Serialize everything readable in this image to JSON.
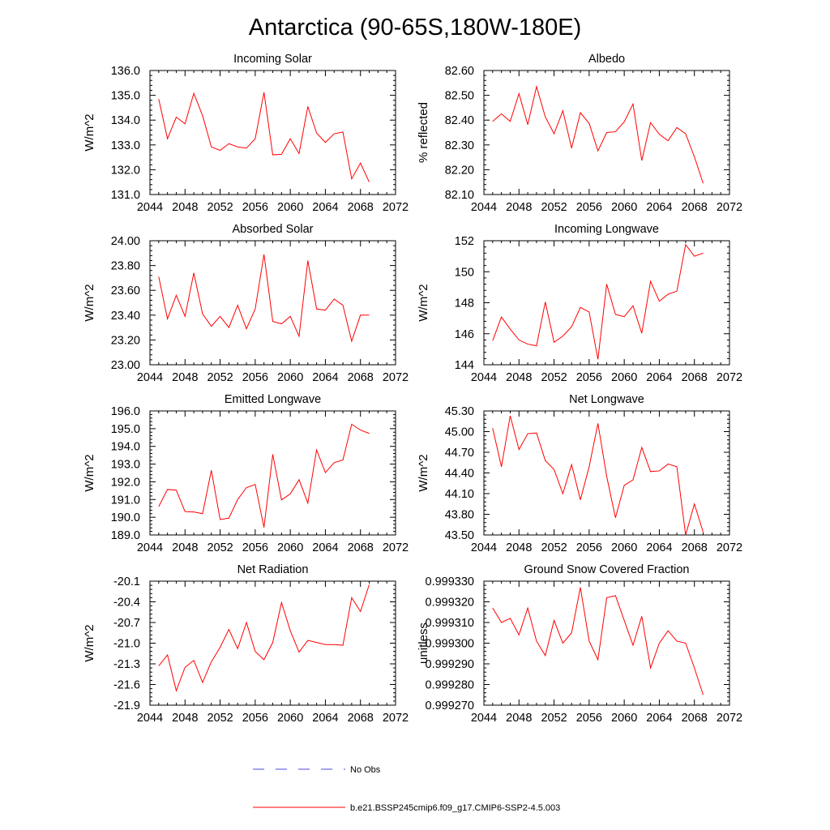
{
  "figure": {
    "title": "Antarctica (90-65S,180W-180E)"
  },
  "legend": [
    {
      "label": "No Obs",
      "color": "#4a4adf",
      "style": "dashed"
    },
    {
      "label": "b.e21.BSSP245cmip6.f09_g17.CMIP6-SSP2-4.5.003",
      "color": "#ff0000",
      "style": "solid"
    }
  ],
  "chart_data": [
    {
      "type": "line",
      "title": "Incoming Solar",
      "ylabel": "W/m^2",
      "xlim": [
        2044,
        2072
      ],
      "ylim": [
        131.0,
        136.0
      ],
      "xticks": [
        2044,
        2048,
        2052,
        2056,
        2060,
        2064,
        2068,
        2072
      ],
      "yticks": [
        "131.0",
        "132.0",
        "133.0",
        "134.0",
        "135.0",
        "136.0"
      ],
      "series": [
        {
          "name": "b.e21.BSSP245cmip6.f09_g17.CMIP6-SSP2-4.5.003",
          "x": [
            2045,
            2046,
            2047,
            2048,
            2049,
            2050,
            2051,
            2052,
            2053,
            2054,
            2055,
            2056,
            2057,
            2058,
            2059,
            2060,
            2061,
            2062,
            2063,
            2064,
            2065,
            2066,
            2067,
            2068,
            2069
          ],
          "y": [
            134.85,
            133.25,
            134.12,
            133.85,
            135.08,
            134.18,
            132.92,
            132.78,
            133.05,
            132.92,
            132.87,
            133.25,
            135.12,
            132.6,
            132.62,
            133.25,
            132.65,
            134.55,
            133.48,
            133.1,
            133.45,
            133.52,
            131.63,
            132.27,
            131.5
          ]
        }
      ]
    },
    {
      "type": "line",
      "title": "Albedo",
      "ylabel": "% reflected",
      "xlim": [
        2044,
        2072
      ],
      "ylim": [
        82.1,
        82.6
      ],
      "xticks": [
        2044,
        2048,
        2052,
        2056,
        2060,
        2064,
        2068,
        2072
      ],
      "yticks": [
        "82.10",
        "82.20",
        "82.30",
        "82.40",
        "82.50",
        "82.60"
      ],
      "series": [
        {
          "name": "b.e21.BSSP245cmip6.f09_g17.CMIP6-SSP2-4.5.003",
          "x": [
            2045,
            2046,
            2047,
            2048,
            2049,
            2050,
            2051,
            2052,
            2053,
            2054,
            2055,
            2056,
            2057,
            2058,
            2059,
            2060,
            2061,
            2062,
            2063,
            2064,
            2065,
            2066,
            2067,
            2068,
            2069
          ],
          "y": [
            82.395,
            82.425,
            82.395,
            82.507,
            82.382,
            82.535,
            82.413,
            82.345,
            82.438,
            82.287,
            82.43,
            82.387,
            82.276,
            82.35,
            82.353,
            82.393,
            82.465,
            82.237,
            82.39,
            82.343,
            82.317,
            82.37,
            82.345,
            82.252,
            82.145
          ]
        }
      ]
    },
    {
      "type": "line",
      "title": "Absorbed Solar",
      "ylabel": "W/m^2",
      "xlim": [
        2044,
        2072
      ],
      "ylim": [
        23.0,
        24.0
      ],
      "xticks": [
        2044,
        2048,
        2052,
        2056,
        2060,
        2064,
        2068,
        2072
      ],
      "yticks": [
        "23.00",
        "23.20",
        "23.40",
        "23.60",
        "23.80",
        "24.00"
      ],
      "series": [
        {
          "name": "b.e21.BSSP245cmip6.f09_g17.CMIP6-SSP2-4.5.003",
          "x": [
            2045,
            2046,
            2047,
            2048,
            2049,
            2050,
            2051,
            2052,
            2053,
            2054,
            2055,
            2056,
            2057,
            2058,
            2059,
            2060,
            2061,
            2062,
            2063,
            2064,
            2065,
            2066,
            2067,
            2068,
            2069
          ],
          "y": [
            23.71,
            23.37,
            23.56,
            23.39,
            23.74,
            23.41,
            23.31,
            23.39,
            23.3,
            23.48,
            23.29,
            23.45,
            23.89,
            23.35,
            23.33,
            23.39,
            23.23,
            23.84,
            23.45,
            23.44,
            23.53,
            23.48,
            23.19,
            23.4,
            23.4
          ]
        }
      ]
    },
    {
      "type": "line",
      "title": "Incoming Longwave",
      "ylabel": "W/m^2",
      "xlim": [
        2044,
        2072
      ],
      "ylim": [
        144,
        152
      ],
      "xticks": [
        2044,
        2048,
        2052,
        2056,
        2060,
        2064,
        2068,
        2072
      ],
      "yticks": [
        "144",
        "146",
        "148",
        "150",
        "152"
      ],
      "series": [
        {
          "name": "b.e21.BSSP245cmip6.f09_g17.CMIP6-SSP2-4.5.003",
          "x": [
            2045,
            2046,
            2047,
            2048,
            2049,
            2050,
            2051,
            2052,
            2053,
            2054,
            2055,
            2056,
            2057,
            2058,
            2059,
            2060,
            2061,
            2062,
            2063,
            2064,
            2065,
            2066,
            2067,
            2068,
            2069
          ],
          "y": [
            145.55,
            147.08,
            146.3,
            145.6,
            145.33,
            145.22,
            148.05,
            145.45,
            145.85,
            146.45,
            147.7,
            147.4,
            144.35,
            149.2,
            147.25,
            147.1,
            147.8,
            146.03,
            149.38,
            148.1,
            148.55,
            148.75,
            151.75,
            151.0,
            151.2
          ]
        }
      ]
    },
    {
      "type": "line",
      "title": "Emitted Longwave",
      "ylabel": "W/m^2",
      "xlim": [
        2044,
        2072
      ],
      "ylim": [
        189.0,
        196.0
      ],
      "xticks": [
        2044,
        2048,
        2052,
        2056,
        2060,
        2064,
        2068,
        2072
      ],
      "yticks": [
        "189.0",
        "190.0",
        "191.0",
        "192.0",
        "193.0",
        "194.0",
        "195.0",
        "196.0"
      ],
      "series": [
        {
          "name": "b.e21.BSSP245cmip6.f09_g17.CMIP6-SSP2-4.5.003",
          "x": [
            2045,
            2046,
            2047,
            2048,
            2049,
            2050,
            2051,
            2052,
            2053,
            2054,
            2055,
            2056,
            2057,
            2058,
            2059,
            2060,
            2061,
            2062,
            2063,
            2064,
            2065,
            2066,
            2067,
            2068,
            2069
          ],
          "y": [
            190.6,
            191.57,
            191.53,
            190.32,
            190.3,
            190.2,
            192.65,
            189.87,
            189.95,
            191.0,
            191.67,
            191.85,
            189.42,
            193.55,
            190.98,
            191.32,
            192.12,
            190.8,
            193.8,
            192.52,
            193.08,
            193.23,
            195.25,
            194.92,
            194.73
          ]
        }
      ]
    },
    {
      "type": "line",
      "title": "Net Longwave",
      "ylabel": "W/m^2",
      "xlim": [
        2044,
        2072
      ],
      "ylim": [
        43.5,
        45.3
      ],
      "xticks": [
        2044,
        2048,
        2052,
        2056,
        2060,
        2064,
        2068,
        2072
      ],
      "yticks": [
        "43.50",
        "43.80",
        "44.10",
        "44.40",
        "44.70",
        "45.00",
        "45.30"
      ],
      "series": [
        {
          "name": "b.e21.BSSP245cmip6.f09_g17.CMIP6-SSP2-4.5.003",
          "x": [
            2045,
            2046,
            2047,
            2048,
            2049,
            2050,
            2051,
            2052,
            2053,
            2054,
            2055,
            2056,
            2057,
            2058,
            2059,
            2060,
            2061,
            2062,
            2063,
            2064,
            2065,
            2066,
            2067,
            2068,
            2069
          ],
          "y": [
            45.05,
            44.49,
            45.23,
            44.74,
            44.97,
            44.98,
            44.58,
            44.45,
            44.1,
            44.52,
            44.01,
            44.49,
            45.12,
            44.35,
            43.75,
            44.22,
            44.3,
            44.77,
            44.42,
            44.43,
            44.53,
            44.49,
            43.5,
            43.95,
            43.54
          ]
        }
      ]
    },
    {
      "type": "line",
      "title": "Net Radiation",
      "ylabel": "W/m^2",
      "xlim": [
        2044,
        2072
      ],
      "ylim": [
        -21.9,
        -20.1
      ],
      "xticks": [
        2044,
        2048,
        2052,
        2056,
        2060,
        2064,
        2068,
        2072
      ],
      "yticks": [
        "-21.9",
        "-21.6",
        "-21.3",
        "-21.0",
        "-20.7",
        "-20.4",
        "-20.1"
      ],
      "series": [
        {
          "name": "b.e21.BSSP245cmip6.f09_g17.CMIP6-SSP2-4.5.003",
          "x": [
            2045,
            2046,
            2047,
            2048,
            2049,
            2050,
            2051,
            2052,
            2053,
            2054,
            2055,
            2056,
            2057,
            2058,
            2059,
            2060,
            2061,
            2062,
            2063,
            2064,
            2065,
            2066,
            2067,
            2068,
            2069
          ],
          "y": [
            -21.33,
            -21.17,
            -21.69,
            -21.35,
            -21.25,
            -21.57,
            -21.27,
            -21.06,
            -20.8,
            -21.08,
            -20.7,
            -21.12,
            -21.24,
            -20.99,
            -20.41,
            -20.82,
            -21.13,
            -20.96,
            -20.99,
            -21.02,
            -21.02,
            -21.03,
            -20.34,
            -20.54,
            -20.15
          ]
        }
      ]
    },
    {
      "type": "line",
      "title": "Ground Snow Covered Fraction",
      "ylabel": "unitless",
      "xlim": [
        2044,
        2072
      ],
      "ylim": [
        0.99927,
        0.99933
      ],
      "xticks": [
        2044,
        2048,
        2052,
        2056,
        2060,
        2064,
        2068,
        2072
      ],
      "yticks": [
        "0.999270",
        "0.999280",
        "0.999290",
        "0.999300",
        "0.999310",
        "0.999320",
        "0.999330"
      ],
      "series": [
        {
          "name": "b.e21.BSSP245cmip6.f09_g17.CMIP6-SSP2-4.5.003",
          "x": [
            2045,
            2046,
            2047,
            2048,
            2049,
            2050,
            2051,
            2052,
            2053,
            2054,
            2055,
            2056,
            2057,
            2058,
            2059,
            2060,
            2061,
            2062,
            2063,
            2064,
            2065,
            2066,
            2067,
            2068,
            2069
          ],
          "y": [
            0.999317,
            0.99931,
            0.999312,
            0.999304,
            0.999317,
            0.999301,
            0.999294,
            0.999311,
            0.9993,
            0.999305,
            0.999327,
            0.999301,
            0.999292,
            0.999322,
            0.999323,
            0.999311,
            0.999299,
            0.999313,
            0.999288,
            0.9993,
            0.999306,
            0.999301,
            0.9993,
            0.999288,
            0.999275
          ]
        }
      ]
    }
  ]
}
